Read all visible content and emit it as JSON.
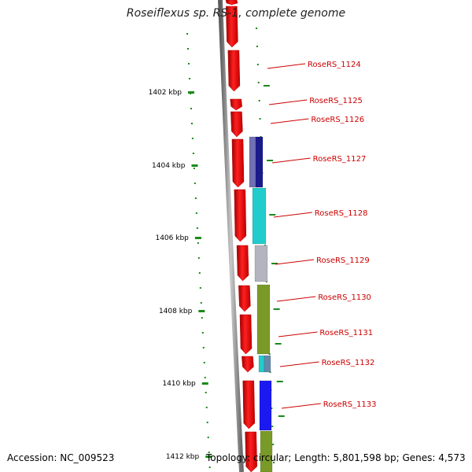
{
  "title": "Roseiflexus sp. RS-1, complete genome",
  "footer": {
    "accession": "Accession: NC_009523",
    "info": "Topology: circular; Length: 5,801,598 bp; Genes: 4,573"
  },
  "colors": {
    "background": "#ffffff",
    "backbone": "#8c8c8c",
    "tick": "#1a8a1a",
    "label": "#cc0000",
    "gene_red": "#ee1111"
  },
  "scale_labels": [
    "1402 kbp",
    "1404 kbp",
    "1406 kbp",
    "1408 kbp",
    "1410 kbp",
    "1412 kbp"
  ],
  "gene_labels": [
    "RoseRS_1124",
    "RoseRS_1125",
    "RoseRS_1126",
    "RoseRS_1127",
    "RoseRS_1128",
    "RoseRS_1129",
    "RoseRS_1130",
    "RoseRS_1131",
    "RoseRS_1132",
    "RoseRS_1133"
  ],
  "feature_colors": {
    "navy": "#1a1a8c",
    "slate": "#7070b4",
    "cyan": "#22cccc",
    "silver": "#b4b4c0",
    "olive": "#7a9a28",
    "steel": "#6688aa",
    "blue": "#1a1af0"
  }
}
